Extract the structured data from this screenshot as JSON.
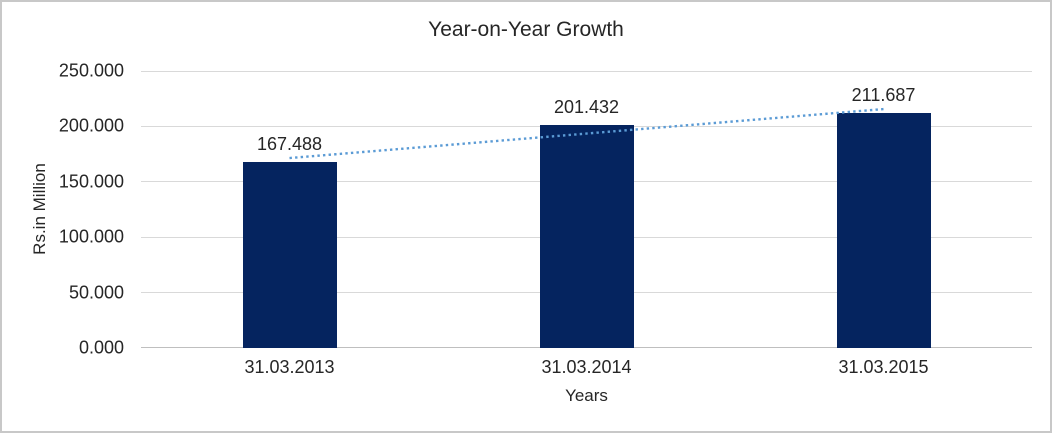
{
  "frame": {
    "background": "#ffffff",
    "border_color": "#c8c8c8"
  },
  "chart_data": {
    "type": "bar",
    "title": "Year-on-Year Growth",
    "categories": [
      "31.03.2013",
      "31.03.2014",
      "31.03.2015"
    ],
    "values": [
      167.488,
      201.432,
      211.687
    ],
    "data_labels": [
      "167.488",
      "201.432",
      "211.687"
    ],
    "xlabel": "Years",
    "ylabel": "Rs.in Million",
    "ylim": [
      0,
      250
    ],
    "ytick_labels": [
      "0.000",
      "50.000",
      "100.000",
      "150.000",
      "200.000",
      "250.000"
    ],
    "grid": true,
    "legend": "none",
    "bar_color": "#05245f",
    "gridline_color": "#d9d9d9",
    "axis_line_color": "#bfbfbf",
    "text_color": "#262626",
    "trendline": {
      "type": "linear",
      "style": "dotted",
      "color": "#5b9bd5"
    }
  }
}
